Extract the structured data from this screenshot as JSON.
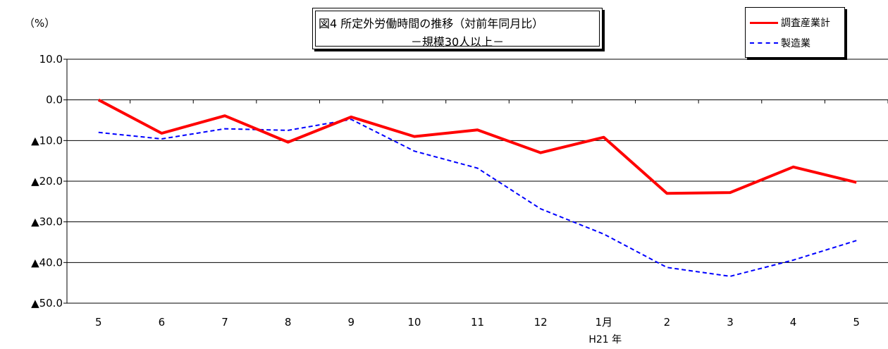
{
  "chart_data": {
    "type": "line",
    "title": "図4 所定外労働時間の推移（対前年同月比）",
    "subtitle": "－規模30人以上－",
    "ylabel": "（%）",
    "ylim": [
      -50,
      10
    ],
    "y_ticks": [
      10,
      0,
      -10,
      -20,
      -30,
      -40,
      -50
    ],
    "y_tick_labels": [
      "10.0",
      "0.0",
      "▲10.0",
      "▲20.0",
      "▲30.0",
      "▲40.0",
      "▲50.0"
    ],
    "categories": [
      "5",
      "6",
      "7",
      "8",
      "9",
      "10",
      "11",
      "12",
      "1月",
      "2",
      "3",
      "4",
      "5"
    ],
    "x_sublabel": "H21 年",
    "grid": true,
    "legend_position": "top-right",
    "series": [
      {
        "name": "調査産業計",
        "color": "#ff0000",
        "style": "solid",
        "values": [
          0.0,
          -8.2,
          -3.9,
          -10.4,
          -4.2,
          -9.0,
          -7.4,
          -13.0,
          -9.2,
          -23.0,
          -22.8,
          -16.5,
          -20.3
        ]
      },
      {
        "name": "製造業",
        "color": "#0000ff",
        "style": "dashed",
        "values": [
          -8.0,
          -9.6,
          -7.1,
          -7.5,
          -4.8,
          -12.6,
          -16.8,
          -26.8,
          -33.0,
          -41.2,
          -43.4,
          -39.4,
          -34.6
        ]
      }
    ]
  }
}
